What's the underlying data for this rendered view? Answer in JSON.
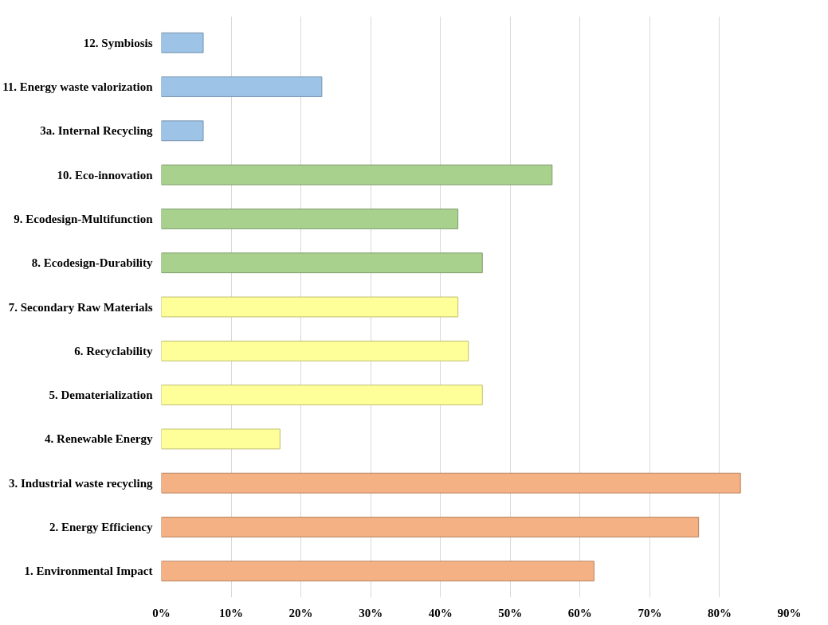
{
  "chart_data": {
    "type": "bar",
    "orientation": "horizontal",
    "categories": [
      "12. Symbiosis",
      "11. Energy waste valorization",
      "3a. Internal Recycling",
      "10. Eco-innovation",
      "9. Ecodesign-Multifunction",
      "8. Ecodesign-Durability",
      "7. Secondary Raw Materials",
      "6. Recyclability",
      "5. Dematerialization",
      "4. Renewable Energy",
      "3. Industrial waste recycling",
      "2. Energy Efficiency",
      "1. Environmental Impact"
    ],
    "values": [
      6,
      23,
      6,
      56,
      42.5,
      46,
      42.5,
      44,
      46,
      17,
      83,
      77,
      62
    ],
    "colors": [
      "#9dc3e6",
      "#9dc3e6",
      "#9dc3e6",
      "#a9d18e",
      "#a9d18e",
      "#a9d18e",
      "#ffff99",
      "#ffff99",
      "#ffff99",
      "#ffff99",
      "#f4b183",
      "#f4b183",
      "#f4b183"
    ],
    "xlim": [
      0,
      90
    ],
    "xticks": [
      {
        "value": 0,
        "label": "0%"
      },
      {
        "value": 10,
        "label": "10%"
      },
      {
        "value": 20,
        "label": "20%"
      },
      {
        "value": 30,
        "label": "30%"
      },
      {
        "value": 40,
        "label": "40%"
      },
      {
        "value": 50,
        "label": "50%"
      },
      {
        "value": 60,
        "label": "60%"
      },
      {
        "value": 70,
        "label": "70%"
      },
      {
        "value": 80,
        "label": "80%"
      },
      {
        "value": 90,
        "label": "90%"
      }
    ],
    "grid": "x"
  }
}
